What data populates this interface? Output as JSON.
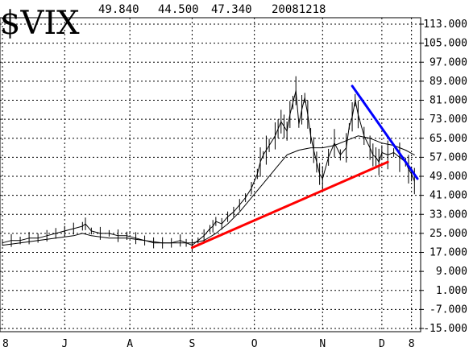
{
  "header": {
    "symbol": "$VIX",
    "value_1": "49.840",
    "value_2": "44.500",
    "value_3": "47.340",
    "date": "20081218"
  },
  "chart_data": {
    "type": "line",
    "title": "$VIX",
    "grid": true,
    "y_axis_side": "right",
    "ylim": [
      -15,
      113
    ],
    "y_ticks": [
      "113.000",
      "105.000",
      "97.000",
      "89.000",
      "81.000",
      "73.000",
      "65.000",
      "57.000",
      "49.000",
      "41.000",
      "33.000",
      "25.000",
      "17.000",
      "9.000",
      "1.000",
      "-7.000",
      "-15.000"
    ],
    "y_tick_values": [
      113,
      105,
      97,
      89,
      81,
      73,
      65,
      57,
      49,
      41,
      33,
      25,
      17,
      9,
      1,
      -7,
      -15
    ],
    "xlim": [
      0,
      140
    ],
    "x_ticks": [
      {
        "label": "8",
        "x": 0
      },
      {
        "label": "J",
        "x": 21
      },
      {
        "label": "A",
        "x": 43
      },
      {
        "label": "S",
        "x": 64
      },
      {
        "label": "O",
        "x": 85
      },
      {
        "label": "N",
        "x": 108
      },
      {
        "label": "D",
        "x": 128
      },
      {
        "label": "8",
        "x": 138
      }
    ],
    "series": [
      {
        "type": "price",
        "color": "#000000",
        "x": [
          0,
          3,
          6,
          9,
          12,
          15,
          18,
          21,
          24,
          27,
          28,
          30,
          33,
          36,
          39,
          42,
          45,
          48,
          51,
          54,
          57,
          60,
          62,
          64,
          66,
          68,
          70,
          71,
          72,
          74,
          76,
          78,
          80,
          82,
          84,
          86,
          87,
          88,
          89,
          90,
          92,
          93,
          94,
          95,
          96,
          97,
          98,
          99,
          100,
          101,
          102,
          103,
          104,
          105,
          106,
          107,
          108,
          110,
          112,
          114,
          116,
          117,
          118,
          119,
          120,
          122,
          124,
          125,
          126,
          127,
          128,
          130,
          132,
          134,
          136,
          137,
          138,
          139
        ],
        "values": [
          21,
          22,
          22,
          23,
          23,
          24,
          25,
          26,
          27,
          28,
          29,
          26,
          25,
          25,
          24,
          24,
          23,
          22,
          21,
          21,
          21,
          22,
          21,
          20,
          22,
          24,
          27,
          28,
          30,
          29,
          32,
          34,
          37,
          40,
          44,
          50,
          55,
          58,
          60,
          62,
          66,
          69,
          72,
          70,
          68,
          75,
          80,
          85,
          71,
          77,
          82,
          75,
          66,
          60,
          55,
          50,
          48,
          57,
          63,
          58,
          61,
          70,
          74,
          81,
          75,
          66,
          61,
          58,
          57,
          55,
          59,
          58,
          59,
          57,
          55,
          52,
          50,
          47
        ]
      },
      {
        "type": "moving_average",
        "color": "#000000",
        "x": [
          0,
          6,
          12,
          18,
          24,
          27,
          30,
          36,
          42,
          48,
          54,
          60,
          64,
          68,
          72,
          76,
          80,
          84,
          88,
          92,
          96,
          100,
          104,
          108,
          112,
          116,
          120,
          124,
          128,
          132,
          136,
          139
        ],
        "values": [
          20,
          21,
          22,
          23,
          24,
          25,
          24,
          23,
          23,
          22,
          21,
          21,
          21,
          22,
          25,
          29,
          34,
          40,
          46,
          52,
          58,
          60,
          61,
          61,
          62,
          64,
          66,
          65,
          63,
          62,
          60,
          58
        ]
      },
      {
        "type": "trendline",
        "color": "#ff0000",
        "x": [
          64,
          130
        ],
        "values": [
          19,
          55
        ]
      },
      {
        "type": "trendline",
        "color": "#0000ff",
        "x": [
          118,
          140
        ],
        "values": [
          87,
          48
        ]
      }
    ]
  }
}
